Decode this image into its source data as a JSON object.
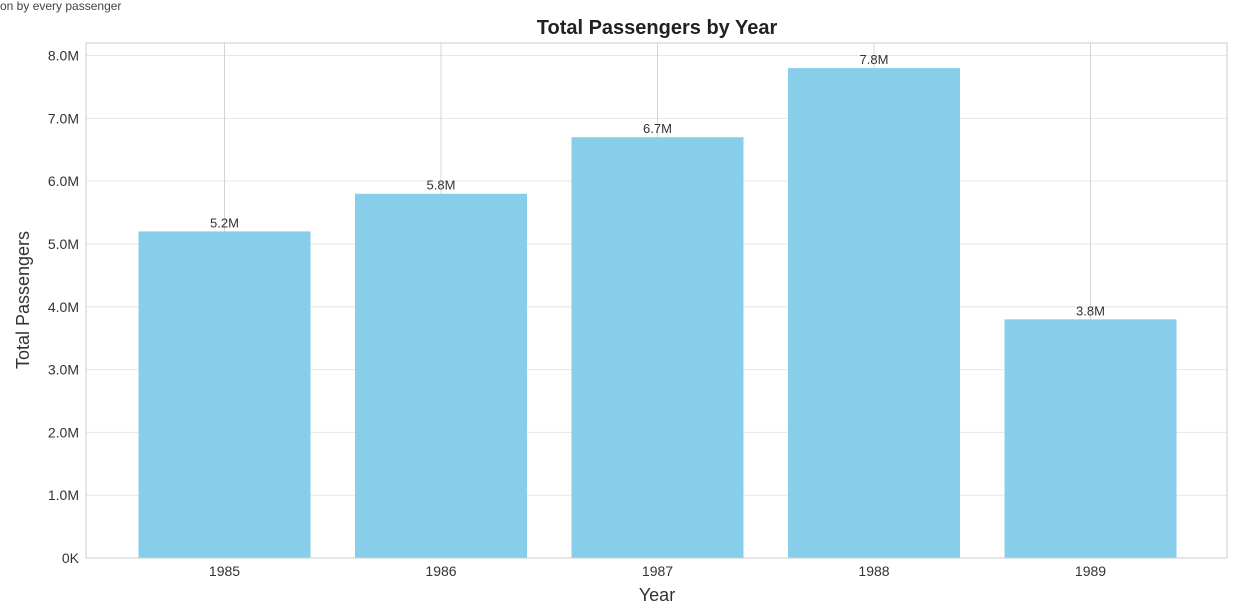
{
  "caption": "on by every passenger",
  "chart_data": {
    "type": "bar",
    "title": "Total Passengers by Year",
    "xlabel": "Year",
    "ylabel": "Total Passengers",
    "categories": [
      "1985",
      "1986",
      "1987",
      "1988",
      "1989"
    ],
    "values": [
      5200000,
      5800000,
      6700000,
      7800000,
      3800000
    ],
    "data_labels": [
      "5.2M",
      "5.8M",
      "6.7M",
      "7.8M",
      "3.8M"
    ],
    "ylim": [
      0,
      8200000
    ],
    "yticks": [
      0,
      1000000,
      2000000,
      3000000,
      4000000,
      5000000,
      6000000,
      7000000,
      8000000
    ],
    "ytick_labels": [
      "0K",
      "1.0M",
      "2.0M",
      "3.0M",
      "4.0M",
      "5.0M",
      "6.0M",
      "7.0M",
      "8.0M"
    ],
    "grid": true,
    "colors": {
      "bar": "#87CEEB",
      "grid": "#e6e6e6",
      "frame": "#cccccc"
    }
  }
}
